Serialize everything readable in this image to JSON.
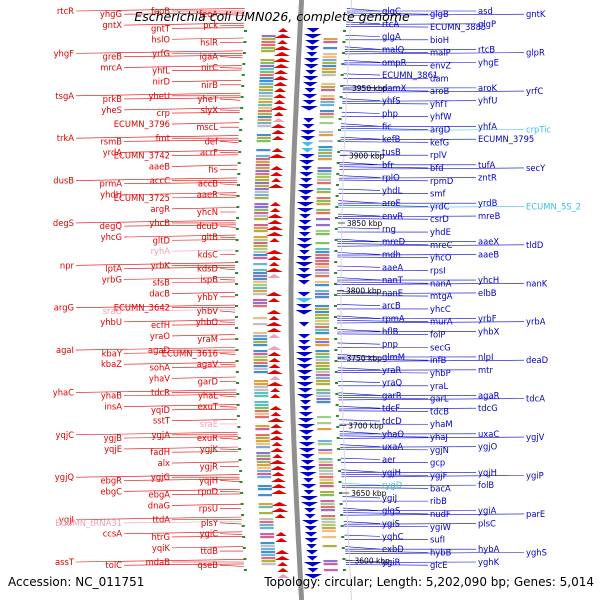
{
  "title": "Escherichia coli UMN026, complete genome",
  "footer": {
    "accession": "Accession: NC_011751",
    "summary": "Topology: circular; Length: 5,202,090 bp; Genes: 5,014"
  },
  "colors": {
    "forward": "#e00000",
    "reverse": "#0000cc",
    "rna_forward": "#f0a0b8",
    "rna_reverse": "#40c0e0",
    "backbone": "#909090",
    "tick": "#2a8a2a"
  },
  "kbp_ticks": [
    {
      "label": "3950 kbp",
      "value": 3950
    },
    {
      "label": "3900 kbp",
      "value": 3900
    },
    {
      "label": "3850 kbp",
      "value": 3850
    },
    {
      "label": "3800 kbp",
      "value": 3800
    },
    {
      "label": "3750 kbp",
      "value": 3750
    },
    {
      "label": "3700 kbp",
      "value": 3700
    },
    {
      "label": "3650 kbp",
      "value": 3650
    },
    {
      "label": "3600 kbp",
      "value": 3600
    }
  ],
  "left_labels": [
    {
      "text": "rtcR",
      "rna": false
    },
    {
      "text": "yhgG",
      "rna": false
    },
    {
      "text": "feoB",
      "rna": false
    },
    {
      "text": "feoA",
      "rna": false
    },
    {
      "text": "gntX",
      "rna": false
    },
    {
      "text": "gntT",
      "rna": false
    },
    {
      "text": "pck",
      "rna": false
    },
    {
      "text": "hslO",
      "rna": false
    },
    {
      "text": "hslR",
      "rna": false
    },
    {
      "text": "yhgF",
      "rna": false
    },
    {
      "text": "greB",
      "rna": false
    },
    {
      "text": "yrfG",
      "rna": false
    },
    {
      "text": "igaA",
      "rna": false
    },
    {
      "text": "mrcA",
      "rna": false
    },
    {
      "text": "yhfL",
      "rna": false
    },
    {
      "text": "nirC",
      "rna": false
    },
    {
      "text": "nirD",
      "rna": false
    },
    {
      "text": "nirB",
      "rna": false
    },
    {
      "text": "tsgA",
      "rna": false
    },
    {
      "text": "prkB",
      "rna": false
    },
    {
      "text": "yheU",
      "rna": false
    },
    {
      "text": "yheT",
      "rna": false
    },
    {
      "text": "yheS",
      "rna": false
    },
    {
      "text": "crp",
      "rna": false
    },
    {
      "text": "slyX",
      "rna": false
    },
    {
      "text": "ECUMN_3796",
      "rna": false
    },
    {
      "text": "mscL",
      "rna": false
    },
    {
      "text": "trkA",
      "rna": false
    },
    {
      "text": "rsmB",
      "rna": false
    },
    {
      "text": "fmt",
      "rna": false
    },
    {
      "text": "def",
      "rna": false
    },
    {
      "text": "yrdA",
      "rna": false
    },
    {
      "text": "ECUMN_3742",
      "rna": false
    },
    {
      "text": "acrF",
      "rna": false
    },
    {
      "text": "aaeB",
      "rna": false
    },
    {
      "text": "fis",
      "rna": false
    },
    {
      "text": "dusB",
      "rna": false
    },
    {
      "text": "prmA",
      "rna": false
    },
    {
      "text": "accC",
      "rna": false
    },
    {
      "text": "accB",
      "rna": false
    },
    {
      "text": "yhdH",
      "rna": false
    },
    {
      "text": "ECUMN_3725",
      "rna": false
    },
    {
      "text": "aaeR",
      "rna": false
    },
    {
      "text": "argR",
      "rna": false
    },
    {
      "text": "yhcN",
      "rna": false
    },
    {
      "text": "degS",
      "rna": false
    },
    {
      "text": "degQ",
      "rna": false
    },
    {
      "text": "yhcB",
      "rna": false
    },
    {
      "text": "dcuD",
      "rna": false
    },
    {
      "text": "yhcG",
      "rna": false
    },
    {
      "text": "gltD",
      "rna": false
    },
    {
      "text": "gltB",
      "rna": false
    },
    {
      "text": "ryhA",
      "rna": true
    },
    {
      "text": "kdsC",
      "rna": false
    },
    {
      "text": "npr",
      "rna": false
    },
    {
      "text": "lptA",
      "rna": false
    },
    {
      "text": "yrbK",
      "rna": false
    },
    {
      "text": "kdsD",
      "rna": false
    },
    {
      "text": "yrbG",
      "rna": false
    },
    {
      "text": "sfsB",
      "rna": false
    },
    {
      "text": "ispB",
      "rna": false
    },
    {
      "text": "dacB",
      "rna": false
    },
    {
      "text": "yhbY",
      "rna": false
    },
    {
      "text": "argG",
      "rna": false
    },
    {
      "text": "sraG",
      "rna": true
    },
    {
      "text": "ECUMN_3642",
      "rna": false
    },
    {
      "text": "yhbV",
      "rna": false
    },
    {
      "text": "yhbU",
      "rna": false
    },
    {
      "text": "ecfH",
      "rna": false
    },
    {
      "text": "yhbO",
      "rna": false
    },
    {
      "text": "yraO",
      "rna": false
    },
    {
      "text": "yraM",
      "rna": false
    },
    {
      "text": "agaI",
      "rna": false
    },
    {
      "text": "kbaY",
      "rna": false
    },
    {
      "text": "agaD",
      "rna": false
    },
    {
      "text": "ECUMN_3616",
      "rna": false
    },
    {
      "text": "kbaZ",
      "rna": false
    },
    {
      "text": "sohA",
      "rna": false
    },
    {
      "text": "agaV",
      "rna": false
    },
    {
      "text": "yhaV",
      "rna": false
    },
    {
      "text": "garD",
      "rna": false
    },
    {
      "text": "yhaC",
      "rna": false
    },
    {
      "text": "yhaB",
      "rna": false
    },
    {
      "text": "tdcR",
      "rna": false
    },
    {
      "text": "yhaL",
      "rna": false
    },
    {
      "text": "insA",
      "rna": false
    },
    {
      "text": "yqiD",
      "rna": false
    },
    {
      "text": "exuT",
      "rna": false
    },
    {
      "text": "sstT",
      "rna": false
    },
    {
      "text": "sraE",
      "rna": true
    },
    {
      "text": "yqjC",
      "rna": false
    },
    {
      "text": "ygjB",
      "rna": false
    },
    {
      "text": "ygjA",
      "rna": false
    },
    {
      "text": "exuR",
      "rna": false
    },
    {
      "text": "yqjE",
      "rna": false
    },
    {
      "text": "fadH",
      "rna": false
    },
    {
      "text": "ygjK",
      "rna": false
    },
    {
      "text": "alx",
      "rna": false
    },
    {
      "text": "ygjR",
      "rna": false
    },
    {
      "text": "ygjQ",
      "rna": false
    },
    {
      "text": "ebgR",
      "rna": false
    },
    {
      "text": "ygjG",
      "rna": false
    },
    {
      "text": "yqjH",
      "rna": false
    },
    {
      "text": "ebgC",
      "rna": false
    },
    {
      "text": "ebgA",
      "rna": false
    },
    {
      "text": "rpoD",
      "rna": false
    },
    {
      "text": "dnaG",
      "rna": false
    },
    {
      "text": "rpsU",
      "rna": false
    },
    {
      "text": "ygjI",
      "rna": false
    },
    {
      "text": "ECUMN_tRNA31",
      "rna": true
    },
    {
      "text": "ttdA",
      "rna": false
    },
    {
      "text": "plsY",
      "rna": false
    },
    {
      "text": "ccsA",
      "rna": false
    },
    {
      "text": "htrG",
      "rna": false
    },
    {
      "text": "ygiC",
      "rna": false
    },
    {
      "text": "yqiK",
      "rna": false
    },
    {
      "text": "ttdB",
      "rna": false
    },
    {
      "text": "assT",
      "rna": false
    },
    {
      "text": "tolC",
      "rna": false
    },
    {
      "text": "mdaB",
      "rna": false
    },
    {
      "text": "qseB",
      "rna": false
    }
  ],
  "right_labels": [
    {
      "text": "glgC",
      "rna": false
    },
    {
      "text": "glgB",
      "rna": false
    },
    {
      "text": "asd",
      "rna": false
    },
    {
      "text": "gntK",
      "rna": false
    },
    {
      "text": "rtcA",
      "rna": false
    },
    {
      "text": "ECUMN_3885",
      "rna": false
    },
    {
      "text": "glgP",
      "rna": false
    },
    {
      "text": "glgA",
      "rna": false
    },
    {
      "text": "bioH",
      "rna": false
    },
    {
      "text": "malQ",
      "rna": false
    },
    {
      "text": "malP",
      "rna": false
    },
    {
      "text": "rtcB",
      "rna": false
    },
    {
      "text": "glpR",
      "rna": false
    },
    {
      "text": "ompR",
      "rna": false
    },
    {
      "text": "envZ",
      "rna": false
    },
    {
      "text": "yhgE",
      "rna": false
    },
    {
      "text": "ECUMN_3861",
      "rna": false
    },
    {
      "text": "dam",
      "rna": false
    },
    {
      "text": "damX",
      "rna": false
    },
    {
      "text": "aroB",
      "rna": false
    },
    {
      "text": "aroK",
      "rna": false
    },
    {
      "text": "yrfC",
      "rna": false
    },
    {
      "text": "yhfS",
      "rna": false
    },
    {
      "text": "yhfT",
      "rna": false
    },
    {
      "text": "yhfU",
      "rna": false
    },
    {
      "text": "php",
      "rna": false
    },
    {
      "text": "yhfW",
      "rna": false
    },
    {
      "text": "fic",
      "rna": false
    },
    {
      "text": "argD",
      "rna": false
    },
    {
      "text": "yhfA",
      "rna": false
    },
    {
      "text": "crpTic",
      "rna": true
    },
    {
      "text": "kefB",
      "rna": false
    },
    {
      "text": "kefG",
      "rna": false
    },
    {
      "text": "ECUMN_3795",
      "rna": false
    },
    {
      "text": "tusB",
      "rna": false
    },
    {
      "text": "rplV",
      "rna": false
    },
    {
      "text": "bfr",
      "rna": false
    },
    {
      "text": "bfd",
      "rna": false
    },
    {
      "text": "tufA",
      "rna": false
    },
    {
      "text": "secY",
      "rna": false
    },
    {
      "text": "rplO",
      "rna": false
    },
    {
      "text": "rpmD",
      "rna": false
    },
    {
      "text": "zntR",
      "rna": false
    },
    {
      "text": "yhdL",
      "rna": false
    },
    {
      "text": "smf",
      "rna": false
    },
    {
      "text": "aroE",
      "rna": false
    },
    {
      "text": "yrdC",
      "rna": false
    },
    {
      "text": "yrdB",
      "rna": false
    },
    {
      "text": "ECUMN_5S_2",
      "rna": true
    },
    {
      "text": "envR",
      "rna": false
    },
    {
      "text": "csrD",
      "rna": false
    },
    {
      "text": "mreB",
      "rna": false
    },
    {
      "text": "rng",
      "rna": false
    },
    {
      "text": "yhdE",
      "rna": false
    },
    {
      "text": "mreD",
      "rna": false
    },
    {
      "text": "mreC",
      "rna": false
    },
    {
      "text": "aaeX",
      "rna": false
    },
    {
      "text": "tldD",
      "rna": false
    },
    {
      "text": "mdh",
      "rna": false
    },
    {
      "text": "yhcO",
      "rna": false
    },
    {
      "text": "aaeB",
      "rna": false
    },
    {
      "text": "aaeA",
      "rna": false
    },
    {
      "text": "rpsI",
      "rna": false
    },
    {
      "text": "nanT",
      "rna": false
    },
    {
      "text": "nanA",
      "rna": false
    },
    {
      "text": "yhcH",
      "rna": false
    },
    {
      "text": "nanK",
      "rna": false
    },
    {
      "text": "nanE",
      "rna": false
    },
    {
      "text": "mtgA",
      "rna": false
    },
    {
      "text": "elbB",
      "rna": false
    },
    {
      "text": "arcB",
      "rna": false
    },
    {
      "text": "yhcC",
      "rna": false
    },
    {
      "text": "rpmA",
      "rna": false
    },
    {
      "text": "murA",
      "rna": false
    },
    {
      "text": "yrbF",
      "rna": false
    },
    {
      "text": "yrbA",
      "rna": false
    },
    {
      "text": "hflB",
      "rna": false
    },
    {
      "text": "folP",
      "rna": false
    },
    {
      "text": "yhbX",
      "rna": false
    },
    {
      "text": "pnp",
      "rna": false
    },
    {
      "text": "secG",
      "rna": false
    },
    {
      "text": "glmM",
      "rna": false
    },
    {
      "text": "infB",
      "rna": false
    },
    {
      "text": "nlpI",
      "rna": false
    },
    {
      "text": "deaD",
      "rna": false
    },
    {
      "text": "yraR",
      "rna": false
    },
    {
      "text": "yhbP",
      "rna": false
    },
    {
      "text": "mtr",
      "rna": false
    },
    {
      "text": "yraQ",
      "rna": false
    },
    {
      "text": "yraL",
      "rna": false
    },
    {
      "text": "garR",
      "rna": false
    },
    {
      "text": "garL",
      "rna": false
    },
    {
      "text": "agaR",
      "rna": false
    },
    {
      "text": "tdcA",
      "rna": false
    },
    {
      "text": "tdcF",
      "rna": false
    },
    {
      "text": "tdcB",
      "rna": false
    },
    {
      "text": "tdcG",
      "rna": false
    },
    {
      "text": "tdcD",
      "rna": false
    },
    {
      "text": "yhaM",
      "rna": false
    },
    {
      "text": "yhaO",
      "rna": false
    },
    {
      "text": "yhaJ",
      "rna": false
    },
    {
      "text": "uxaC",
      "rna": false
    },
    {
      "text": "ygjV",
      "rna": false
    },
    {
      "text": "uxaA",
      "rna": false
    },
    {
      "text": "ygjN",
      "rna": false
    },
    {
      "text": "ygjO",
      "rna": false
    },
    {
      "text": "aer",
      "rna": false
    },
    {
      "text": "gcp",
      "rna": false
    },
    {
      "text": "ygjH",
      "rna": false
    },
    {
      "text": "ygjF",
      "rna": false
    },
    {
      "text": "yqjH",
      "rna": false
    },
    {
      "text": "ygiP",
      "rna": false
    },
    {
      "text": "rygD",
      "rna": true
    },
    {
      "text": "bacA",
      "rna": false
    },
    {
      "text": "folB",
      "rna": false
    },
    {
      "text": "ygiJ",
      "rna": false
    },
    {
      "text": "ribB",
      "rna": false
    },
    {
      "text": "glgS",
      "rna": false
    },
    {
      "text": "nudF",
      "rna": false
    },
    {
      "text": "ygiA",
      "rna": false
    },
    {
      "text": "parE",
      "rna": false
    },
    {
      "text": "ygiS",
      "rna": false
    },
    {
      "text": "ygiW",
      "rna": false
    },
    {
      "text": "plsC",
      "rna": false
    },
    {
      "text": "yqhC",
      "rna": false
    },
    {
      "text": "sufI",
      "rna": false
    },
    {
      "text": "exbD",
      "rna": false
    },
    {
      "text": "hybB",
      "rna": false
    },
    {
      "text": "hybA",
      "rna": false
    },
    {
      "text": "yghS",
      "rna": false
    },
    {
      "text": "ygiR",
      "rna": false
    },
    {
      "text": "glcE",
      "rna": false
    },
    {
      "text": "yghK",
      "rna": false
    }
  ]
}
